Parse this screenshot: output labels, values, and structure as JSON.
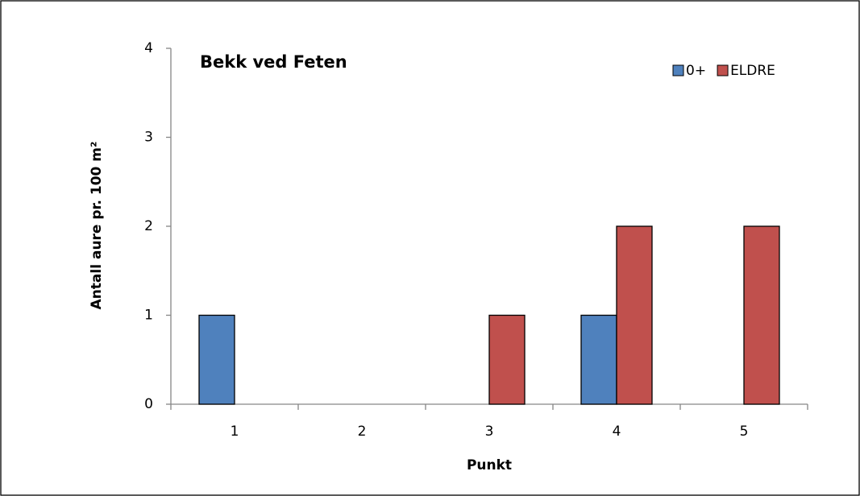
{
  "chart_data": {
    "type": "bar",
    "title": "Bekk ved Feten",
    "x_label": "Punkt",
    "y_label": "Antall aure pr. 100 m²",
    "categories": [
      "1",
      "2",
      "3",
      "4",
      "5"
    ],
    "series": [
      {
        "name": "0+",
        "color": "#4f81bd",
        "values": [
          1,
          0,
          0,
          1,
          0
        ]
      },
      {
        "name": "ELDRE",
        "color": "#c0504d",
        "values": [
          0,
          0,
          1,
          2,
          2
        ]
      }
    ],
    "ylim": [
      0,
      4
    ],
    "yticks": [
      0,
      1,
      2,
      3,
      4
    ],
    "grid": false,
    "legend": "upper right"
  }
}
